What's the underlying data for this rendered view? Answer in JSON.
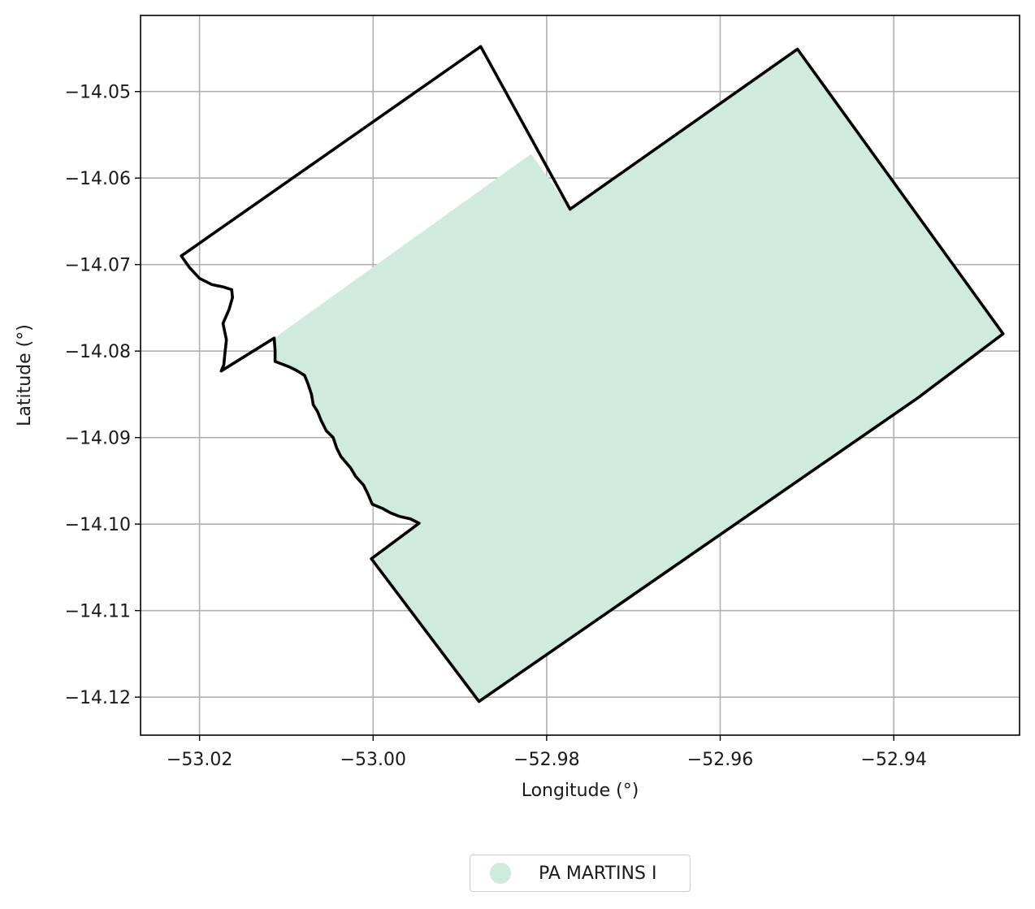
{
  "chart_data": {
    "type": "map",
    "xlabel": "Longitude (°)",
    "ylabel": "Latitude (°)",
    "xlim": [
      -53.0268,
      -52.9255
    ],
    "ylim": [
      -14.1244,
      -14.0412
    ],
    "x_ticks": [
      -53.02,
      -53.0,
      -52.98,
      -52.96,
      -52.94
    ],
    "x_tick_labels": [
      "−53.02",
      "−53.00",
      "−52.98",
      "−52.96",
      "−52.94"
    ],
    "y_ticks": [
      -14.05,
      -14.06,
      -14.07,
      -14.08,
      -14.09,
      -14.1,
      -14.11,
      -14.12
    ],
    "y_tick_labels": [
      "−14.05",
      "−14.06",
      "−14.07",
      "−14.08",
      "−14.09",
      "−14.10",
      "−14.11",
      "−14.12"
    ],
    "grid": true,
    "fill_color": "#ceebdd",
    "outline_color": "#000000",
    "outline": [
      [
        -53.0221,
        -14.069
      ],
      [
        -53.0212,
        -14.0703
      ],
      [
        -53.02,
        -14.0716
      ],
      [
        -53.0186,
        -14.0723
      ],
      [
        -53.0172,
        -14.0726
      ],
      [
        -53.0163,
        -14.0729
      ],
      [
        -53.0162,
        -14.0738
      ],
      [
        -53.0166,
        -14.0752
      ],
      [
        -53.0173,
        -14.0768
      ],
      [
        -53.0169,
        -14.0787
      ],
      [
        -53.0171,
        -14.0805
      ],
      [
        -53.0172,
        -14.0816
      ],
      [
        -53.0175,
        -14.0823
      ],
      [
        -53.0114,
        -14.0785
      ],
      [
        -53.0113,
        -14.0799
      ],
      [
        -53.0113,
        -14.0812
      ],
      [
        -53.0105,
        -14.0815
      ],
      [
        -53.0097,
        -14.0818
      ],
      [
        -53.0089,
        -14.0822
      ],
      [
        -53.0079,
        -14.0828
      ],
      [
        -53.0075,
        -14.0838
      ],
      [
        -53.0071,
        -14.085
      ],
      [
        -53.0069,
        -14.0862
      ],
      [
        -53.0064,
        -14.087
      ],
      [
        -53.006,
        -14.088
      ],
      [
        -53.0054,
        -14.0892
      ],
      [
        -53.0046,
        -14.09
      ],
      [
        -53.0042,
        -14.0912
      ],
      [
        -53.0037,
        -14.0922
      ],
      [
        -53.0026,
        -14.0935
      ],
      [
        -53.002,
        -14.0945
      ],
      [
        -53.0011,
        -14.0955
      ],
      [
        -53.0006,
        -14.0965
      ],
      [
        -53.0001,
        -14.0977
      ],
      [
        -52.9989,
        -14.0982
      ],
      [
        -52.998,
        -14.0987
      ],
      [
        -52.997,
        -14.0991
      ],
      [
        -52.9957,
        -14.0994
      ],
      [
        -52.9947,
        -14.0999
      ],
      [
        -53.0002,
        -14.104
      ],
      [
        -52.9878,
        -14.1205
      ],
      [
        -52.9372,
        -14.0854
      ],
      [
        -52.9274,
        -14.078
      ],
      [
        -52.9511,
        -14.0451
      ],
      [
        -52.9773,
        -14.0636
      ],
      [
        -52.9876,
        -14.0448
      ],
      [
        -53.0221,
        -14.069
      ]
    ],
    "filled_region": [
      [
        -53.0114,
        -14.0785
      ],
      [
        -53.0113,
        -14.0812
      ],
      [
        -53.0089,
        -14.0822
      ],
      [
        -53.0075,
        -14.0838
      ],
      [
        -53.0069,
        -14.0862
      ],
      [
        -53.006,
        -14.088
      ],
      [
        -53.0046,
        -14.09
      ],
      [
        -53.0037,
        -14.0922
      ],
      [
        -53.002,
        -14.0945
      ],
      [
        -53.0006,
        -14.0965
      ],
      [
        -53.0001,
        -14.0977
      ],
      [
        -52.998,
        -14.0987
      ],
      [
        -52.9947,
        -14.0999
      ],
      [
        -53.0002,
        -14.104
      ],
      [
        -52.9878,
        -14.1205
      ],
      [
        -52.9372,
        -14.0854
      ],
      [
        -52.9274,
        -14.078
      ],
      [
        -52.9511,
        -14.0451
      ],
      [
        -52.9773,
        -14.0636
      ],
      [
        -52.9818,
        -14.0572
      ],
      [
        -53.0114,
        -14.0785
      ]
    ]
  },
  "legend": {
    "label": "PA MARTINS I",
    "color": "#ceebdd"
  }
}
